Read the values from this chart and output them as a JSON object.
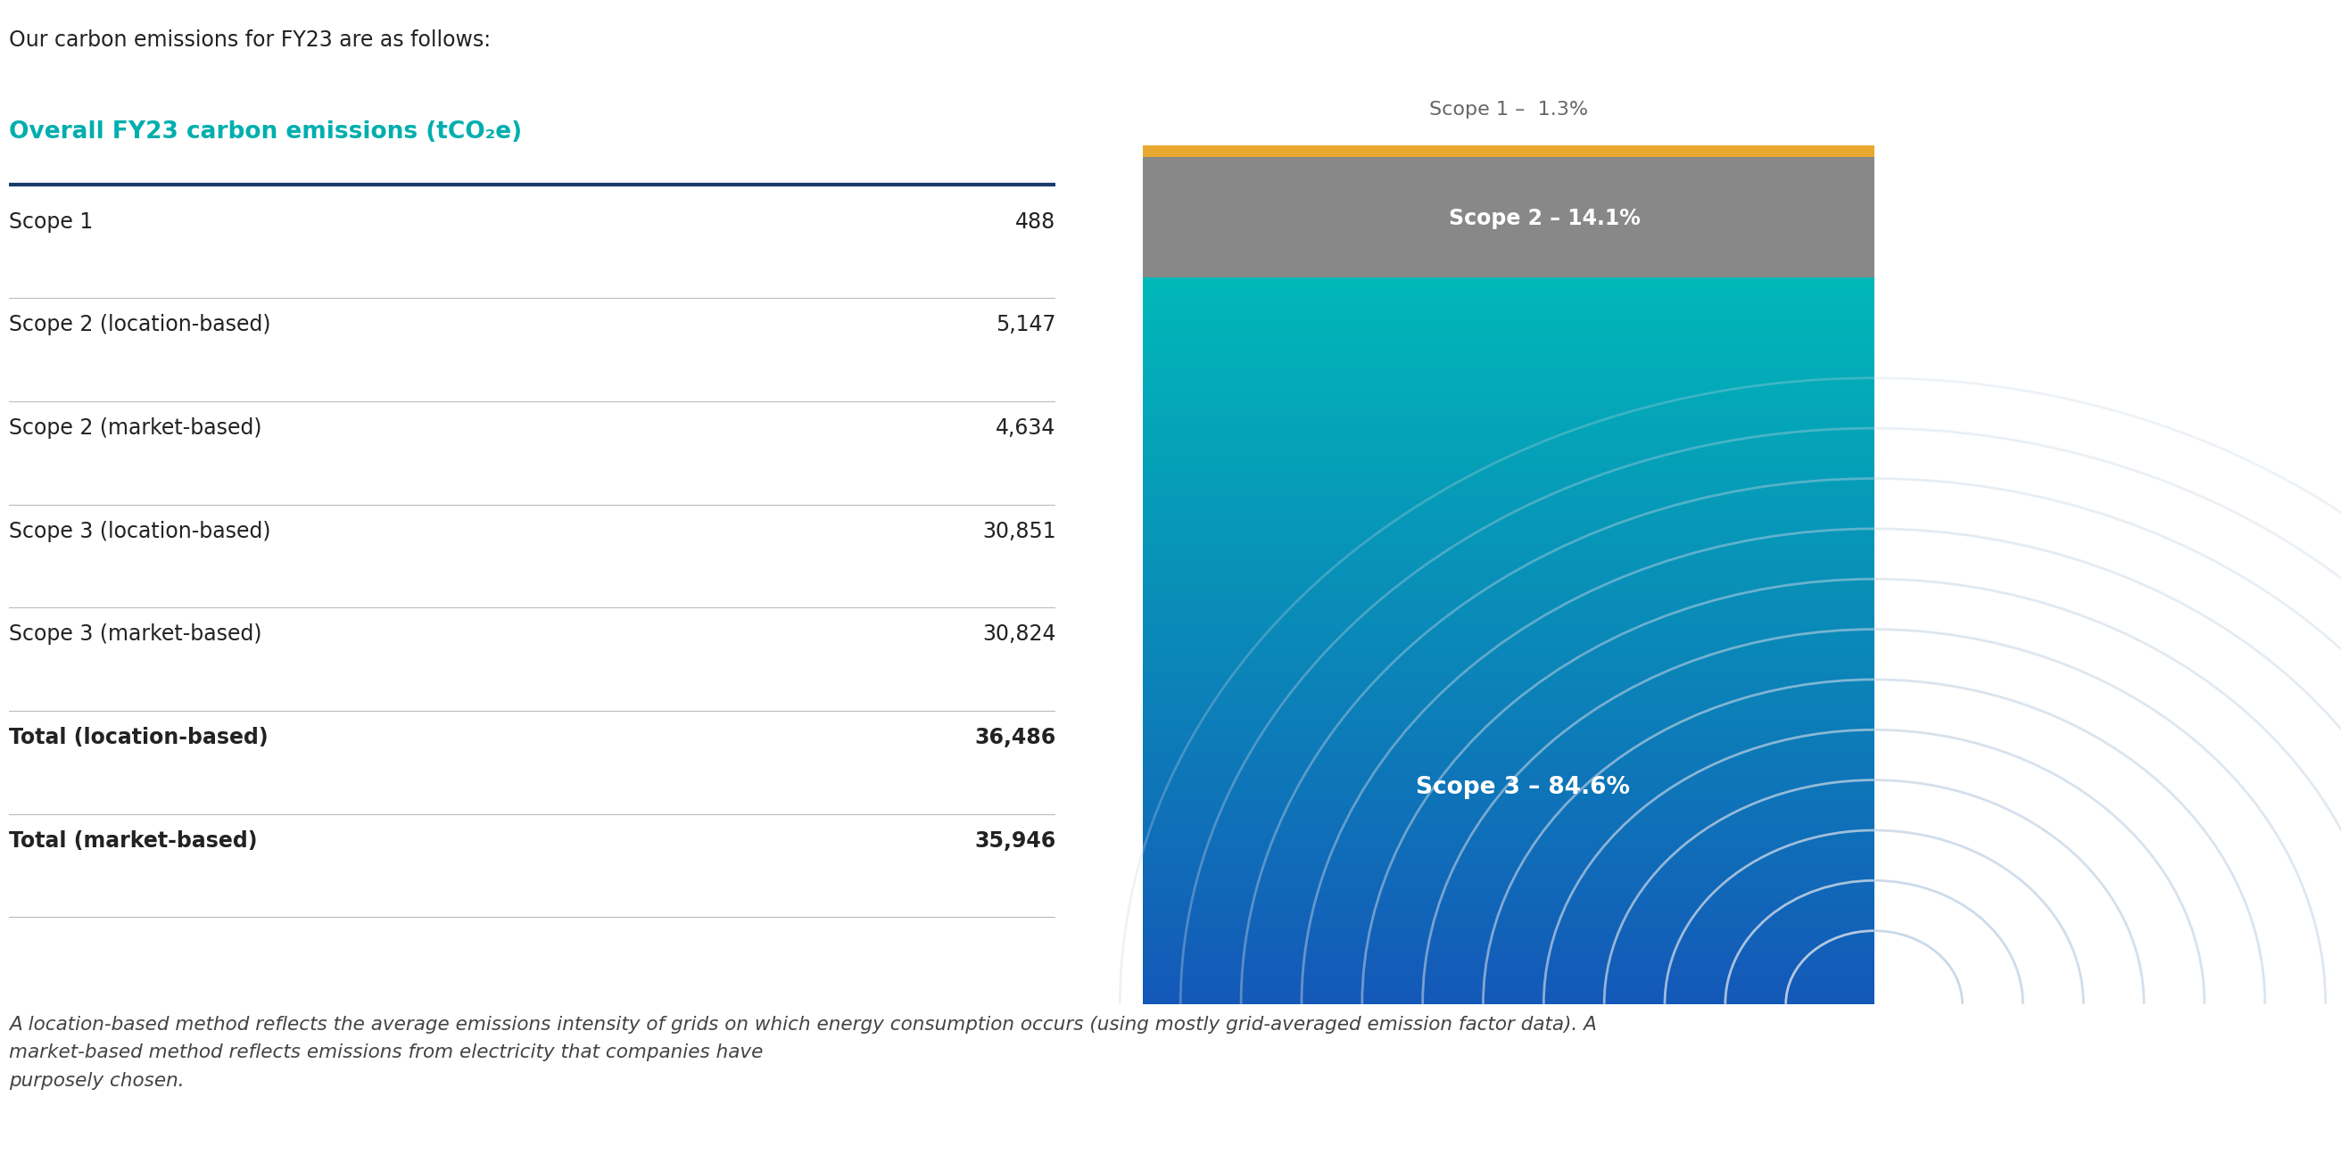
{
  "intro_text": "Our carbon emissions for FY23 are as follows:",
  "table_header": "Overall FY23 carbon emissions (tCO₂e)",
  "table_header_color": "#00AEAE",
  "table_header_line_color": "#1a3a6b",
  "rows": [
    {
      "label": "Scope 1",
      "value": "488",
      "bold": false
    },
    {
      "label": "Scope 2 (location-based)",
      "value": "5,147",
      "bold": false
    },
    {
      "label": "Scope 2 (market-based)",
      "value": "4,634",
      "bold": false
    },
    {
      "label": "Scope 3 (location-based)",
      "value": "30,851",
      "bold": false
    },
    {
      "label": "Scope 3 (market-based)",
      "value": "30,824",
      "bold": false
    },
    {
      "label": "Total (location-based)",
      "value": "36,486",
      "bold": true
    },
    {
      "label": "Total (market-based)",
      "value": "35,946",
      "bold": true
    }
  ],
  "footnote": "A location-based method reflects the average emissions intensity of grids on which energy consumption occurs (using mostly grid-averaged emission factor data). A\nmarket-based method reflects emissions from electricity that companies have\npurposely chosen.",
  "chart": {
    "scope1_pct": 1.3,
    "scope2_pct": 14.1,
    "scope3_pct": 84.6,
    "scope1_color": "#E8A830",
    "scope2_color": "#888888",
    "scope3_color_top": "#00B8B8",
    "scope3_color_bottom": "#1458B8",
    "label_scope1": "Scope 1 –  1.3%",
    "label_scope2": "Scope 2 – 14.1%",
    "label_scope3": "Scope 3 – 84.6%",
    "ripple_color": "#c5d5e5"
  },
  "bg_color": "#ffffff",
  "text_color": "#222222",
  "row_line_color": "#bbbbbb"
}
